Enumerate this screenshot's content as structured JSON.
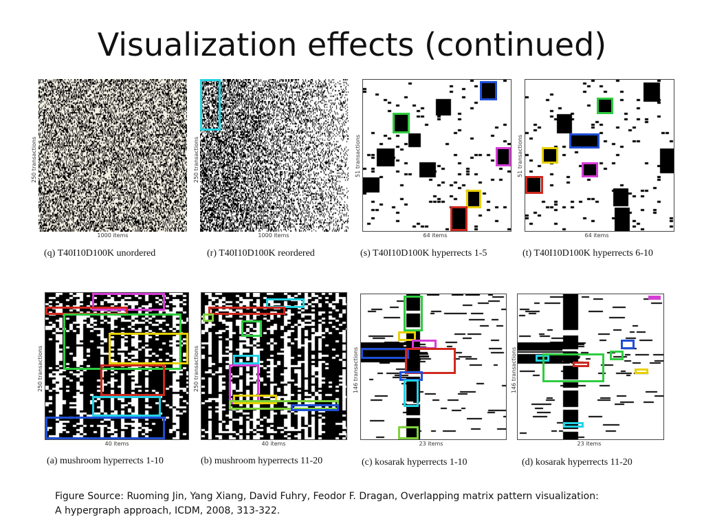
{
  "slide": {
    "title": "Visualization effects (continued)",
    "source_line1": "Figure Source: Ruoming Jin, Yang Xiang, David Fuhry, Feodor F. Dragan, Overlapping matrix pattern visualization:",
    "source_line2": "A hypergraph approach, ICDM, 2008, 313-322."
  },
  "panels": [
    {
      "id": "q",
      "caption": "(q) T40I10D100K unordered",
      "ylabel": "250 transactions",
      "xlabel": "1000 items"
    },
    {
      "id": "r",
      "caption": "(r) T40I10D100K reordered",
      "ylabel": "250 transactions",
      "xlabel": "1000 items"
    },
    {
      "id": "s",
      "caption": "(s) T40I10D100K hyperrects 1-5",
      "ylabel": "51 transactions",
      "xlabel": "64 items"
    },
    {
      "id": "t",
      "caption": "(t) T40I10D100K hyperrects 6-10",
      "ylabel": "51 transactions",
      "xlabel": "64 items"
    },
    {
      "id": "a",
      "caption": "(a) mushroom hyperrects 1-10",
      "ylabel": "250 transactions",
      "xlabel": "40 items"
    },
    {
      "id": "b",
      "caption": "(b) mushroom hyperrects 11-20",
      "ylabel": "250 transactions",
      "xlabel": "40 items"
    },
    {
      "id": "c",
      "caption": "(c) kosarak hyperrects 1-10",
      "ylabel": "146 transactions",
      "xlabel": "23 items"
    },
    {
      "id": "d",
      "caption": "(d) kosarak hyperrects 11-20",
      "ylabel": "146 transactions",
      "xlabel": "23 items"
    }
  ],
  "colors": {
    "cyan": "#22d3e6",
    "green": "#2ecc40",
    "blue": "#1f4fd6",
    "magenta": "#d63cd6",
    "yellow": "#e8d000",
    "red": "#d0281e",
    "lime": "#7fd33a",
    "black": "#000000"
  }
}
